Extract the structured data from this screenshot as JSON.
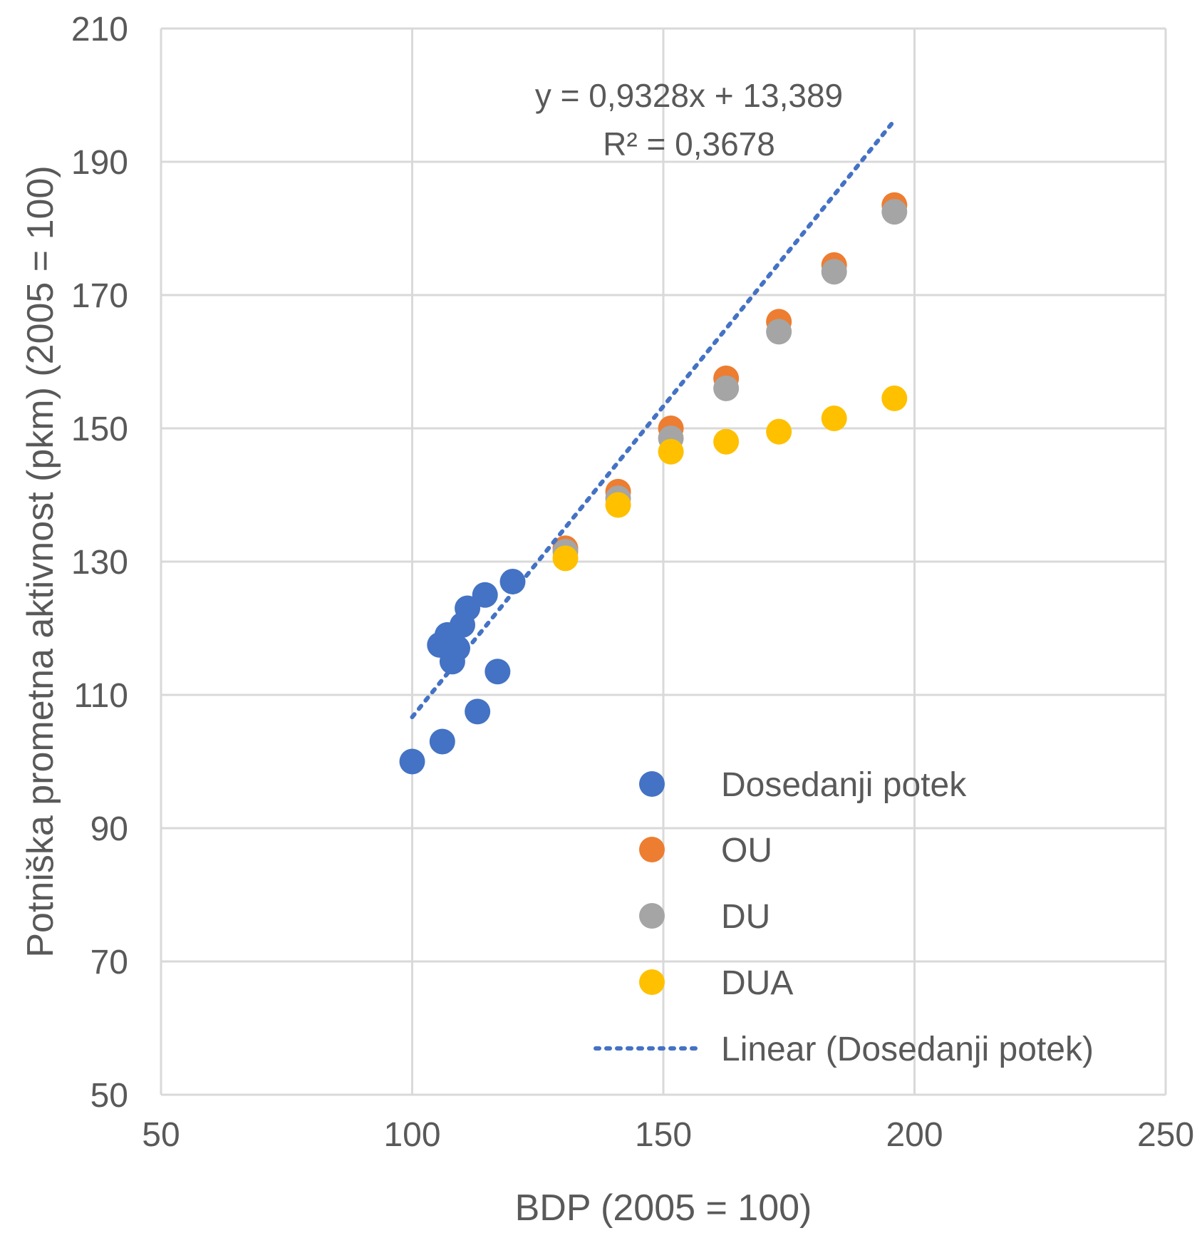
{
  "chart_data": {
    "type": "scatter",
    "xlabel": "BDP (2005 = 100)",
    "ylabel": "Potniška prometna aktivnost (pkm) (2005 = 100)",
    "xlim": [
      50,
      250
    ],
    "ylim": [
      50,
      210
    ],
    "x_ticks": [
      50,
      100,
      150,
      200,
      250
    ],
    "y_ticks": [
      50,
      70,
      90,
      110,
      130,
      150,
      170,
      190,
      210
    ],
    "grid": true,
    "legend_position": "bottom-right inside plot",
    "series": [
      {
        "name": "Dosedanji potek",
        "color": "#4472C4",
        "points": [
          {
            "x": 100,
            "y": 100
          },
          {
            "x": 106,
            "y": 103
          },
          {
            "x": 113,
            "y": 107.5
          },
          {
            "x": 117,
            "y": 113.5
          },
          {
            "x": 108,
            "y": 115
          },
          {
            "x": 109,
            "y": 117
          },
          {
            "x": 105.5,
            "y": 117.5
          },
          {
            "x": 107,
            "y": 119
          },
          {
            "x": 110,
            "y": 120.5
          },
          {
            "x": 111,
            "y": 123
          },
          {
            "x": 114.5,
            "y": 125
          },
          {
            "x": 120,
            "y": 127
          }
        ]
      },
      {
        "name": "OU",
        "color": "#ED7D31",
        "points": [
          {
            "x": 130.5,
            "y": 132
          },
          {
            "x": 141,
            "y": 140.5
          },
          {
            "x": 151.5,
            "y": 150
          },
          {
            "x": 162.5,
            "y": 157.5
          },
          {
            "x": 173,
            "y": 166
          },
          {
            "x": 184,
            "y": 174.5
          },
          {
            "x": 196,
            "y": 183.5
          }
        ]
      },
      {
        "name": "DU",
        "color": "#A5A5A5",
        "points": [
          {
            "x": 130.5,
            "y": 131.5
          },
          {
            "x": 141,
            "y": 139.5
          },
          {
            "x": 151.5,
            "y": 148.5
          },
          {
            "x": 162.5,
            "y": 156
          },
          {
            "x": 173,
            "y": 164.5
          },
          {
            "x": 184,
            "y": 173.5
          },
          {
            "x": 196,
            "y": 182.5
          }
        ]
      },
      {
        "name": "DUA",
        "color": "#FFC000",
        "points": [
          {
            "x": 130.5,
            "y": 130.5
          },
          {
            "x": 141,
            "y": 138.5
          },
          {
            "x": 151.5,
            "y": 146.5
          },
          {
            "x": 162.5,
            "y": 148
          },
          {
            "x": 173,
            "y": 149.5
          },
          {
            "x": 184,
            "y": 151.5
          },
          {
            "x": 196,
            "y": 154.5
          }
        ]
      }
    ],
    "trendline": {
      "name": "Linear (Dosedanji potek)",
      "color": "#4472C4",
      "style": "dotted",
      "slope": 0.9328,
      "intercept": 13.389,
      "x_range": [
        100,
        196
      ],
      "equation_label": "y = 0,9328x + 13,389",
      "r2_label": "R² = 0,3678"
    }
  }
}
